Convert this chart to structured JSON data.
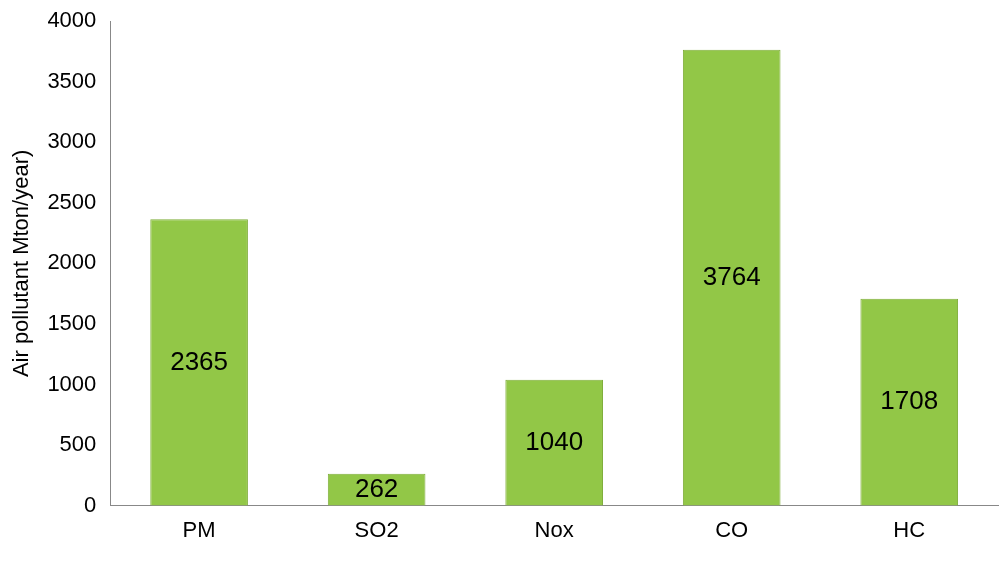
{
  "chart_data": {
    "type": "bar",
    "ylabel": "Air pollutant Mton/year)",
    "categories": [
      "PM",
      "SO2",
      "Nox",
      "CO",
      "HC"
    ],
    "values": [
      2365,
      262,
      1040,
      3764,
      1708
    ],
    "color": "#92c747",
    "ylim": [
      0,
      4000
    ],
    "yticks": [
      0,
      500,
      1000,
      1500,
      2000,
      2500,
      3000,
      3500,
      4000
    ],
    "grid": false,
    "legend": false,
    "data_labels": true
  }
}
